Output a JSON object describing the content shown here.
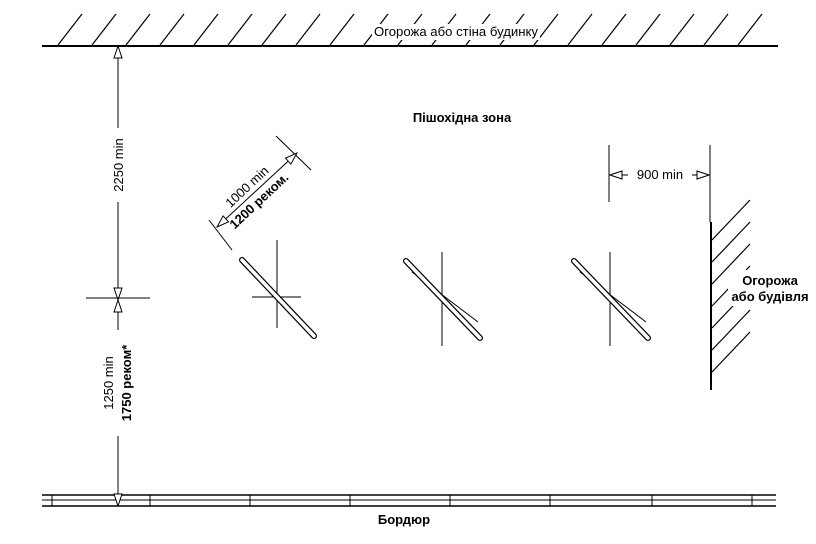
{
  "labels": {
    "top_fence": "Огорожа або стіна будинку",
    "pedestrian_zone": "Пішохідна зона",
    "curb": "Бордюр",
    "fence_or_building_line1": "Огорожа",
    "fence_or_building_line2": "або будівля"
  },
  "dimensions": {
    "top_gap": "2250 min",
    "curb_gap_min": "1250 min",
    "curb_gap_rec": "1750 реком*",
    "stand_spacing_min": "1000 min",
    "stand_spacing_rec": "1200 реком.",
    "side_gap": "900 min"
  },
  "colors": {
    "line": "#000000",
    "background": "#ffffff"
  }
}
